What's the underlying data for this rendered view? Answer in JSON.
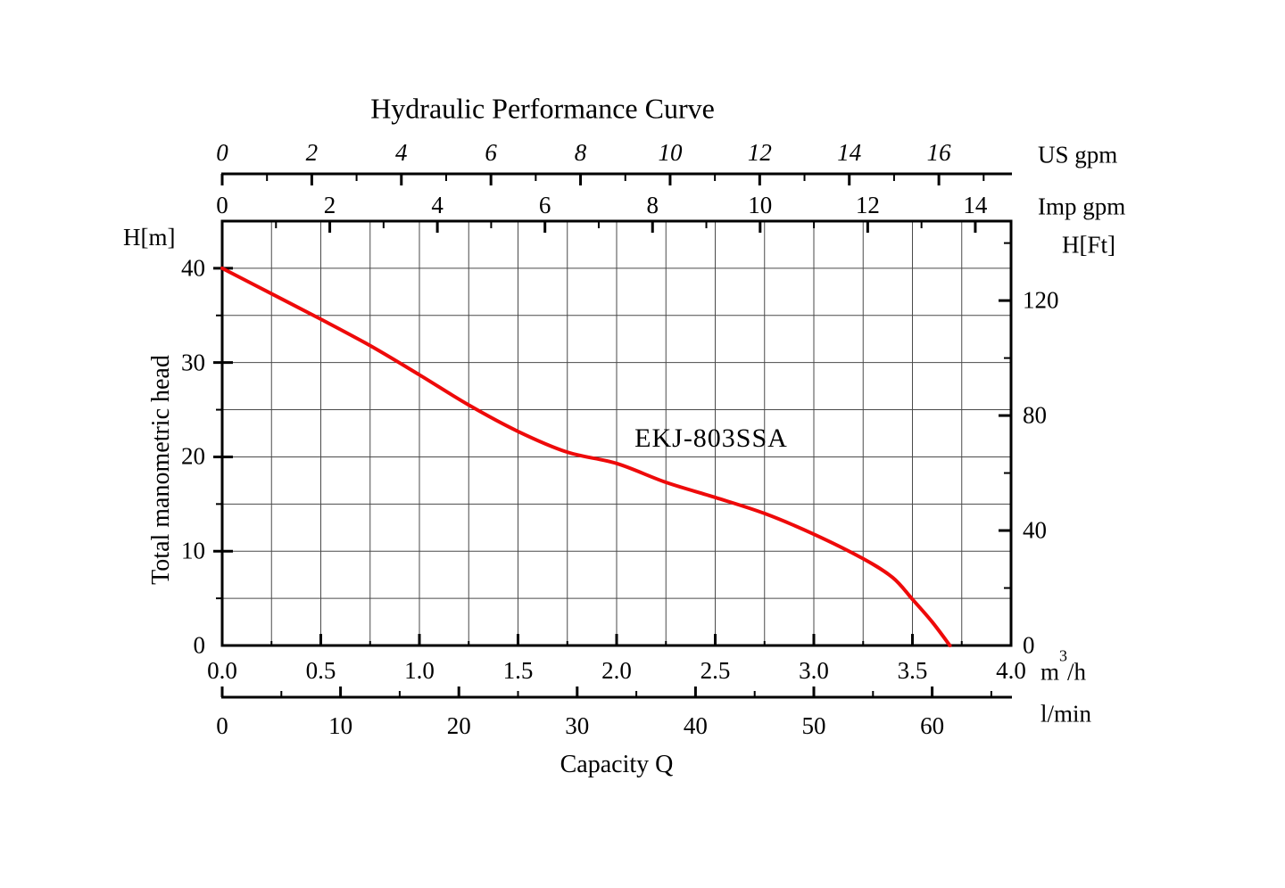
{
  "title": "Hydraulic Performance Curve",
  "labels": {
    "left_axis_unit": "H[m]",
    "left_axis_title": "Total manometric head",
    "right_axis_unit": "H[Ft]",
    "us_gpm_unit": "US gpm",
    "imp_gpm_unit": "Imp gpm",
    "flow_m3h": {
      "pre": "m",
      "sup": "3",
      "post": "/h"
    },
    "flow_lmin": "l/min",
    "x_axis_title": "Capacity Q"
  },
  "chart_data": {
    "type": "line",
    "title": "Hydraulic Performance Curve",
    "xlabel": "Capacity Q",
    "ylabel": "Total manometric head",
    "x_range_m3h": [
      0,
      4.0
    ],
    "y_range_m": [
      0,
      45
    ],
    "grid": "on",
    "x_gridlines": [
      0.25,
      0.5,
      0.75,
      1.0,
      1.25,
      1.5,
      1.75,
      2.0,
      2.25,
      2.5,
      2.75,
      3.0,
      3.25,
      3.5,
      3.75
    ],
    "y_gridlines": [
      5,
      10,
      15,
      20,
      25,
      30,
      35,
      40
    ],
    "colors": {
      "curve": "#ee0a0a",
      "grid": "#4a4a4a",
      "axis": "#000000"
    },
    "series": [
      {
        "name": "EKJ-803SSA",
        "color": "#ee0a0a",
        "units": [
          "m3/h",
          "m"
        ],
        "points": [
          [
            0.0,
            40.0
          ],
          [
            0.25,
            37.3
          ],
          [
            0.5,
            34.6
          ],
          [
            0.75,
            31.8
          ],
          [
            1.0,
            28.7
          ],
          [
            1.25,
            25.5
          ],
          [
            1.5,
            22.7
          ],
          [
            1.75,
            20.5
          ],
          [
            2.0,
            19.3
          ],
          [
            2.25,
            17.3
          ],
          [
            2.5,
            15.7
          ],
          [
            2.75,
            14.0
          ],
          [
            3.0,
            11.8
          ],
          [
            3.25,
            9.2
          ],
          [
            3.4,
            7.2
          ],
          [
            3.5,
            4.9
          ],
          [
            3.6,
            2.5
          ],
          [
            3.69,
            0.0
          ]
        ]
      }
    ],
    "axes": {
      "us_gpm": {
        "unit": "US gpm",
        "factor_m3h": 0.227124,
        "major_mod": 2,
        "ticks": [
          0,
          1,
          2,
          3,
          4,
          5,
          6,
          7,
          8,
          9,
          10,
          11,
          12,
          13,
          14,
          15,
          16,
          17
        ],
        "labels": [
          [
            0,
            "0"
          ],
          [
            2,
            "2"
          ],
          [
            4,
            "4"
          ],
          [
            6,
            "6"
          ],
          [
            8,
            "8"
          ],
          [
            10,
            "10"
          ],
          [
            12,
            "12"
          ],
          [
            14,
            "14"
          ],
          [
            16,
            "16"
          ]
        ]
      },
      "imp_gpm": {
        "unit": "Imp gpm",
        "factor_m3h": 0.272765,
        "major_mod": 2,
        "ticks": [
          0,
          1,
          2,
          3,
          4,
          5,
          6,
          7,
          8,
          9,
          10,
          11,
          12,
          13,
          14
        ],
        "labels": [
          [
            0,
            "0"
          ],
          [
            2,
            "2"
          ],
          [
            4,
            "4"
          ],
          [
            6,
            "6"
          ],
          [
            8,
            "8"
          ],
          [
            10,
            "10"
          ],
          [
            12,
            "12"
          ],
          [
            14,
            "14"
          ]
        ]
      },
      "m3h": {
        "unit": "m3/h",
        "factor_m3h": 1,
        "major_mod": 0.5,
        "ticks": [
          0,
          0.25,
          0.5,
          0.75,
          1.0,
          1.25,
          1.5,
          1.75,
          2.0,
          2.25,
          2.5,
          2.75,
          3.0,
          3.25,
          3.5,
          3.75,
          4.0
        ],
        "labels": [
          [
            0,
            "0.0"
          ],
          [
            0.5,
            "0.5"
          ],
          [
            1.0,
            "1.0"
          ],
          [
            1.5,
            "1.5"
          ],
          [
            2.0,
            "2.0"
          ],
          [
            2.5,
            "2.5"
          ],
          [
            3.0,
            "3.0"
          ],
          [
            3.5,
            "3.5"
          ],
          [
            4.0,
            "4.0"
          ]
        ]
      },
      "lmin": {
        "unit": "l/min",
        "factor_m3h": 0.06,
        "major_mod": 10,
        "ticks": [
          0,
          5,
          10,
          15,
          20,
          25,
          30,
          35,
          40,
          45,
          50,
          55,
          60,
          65
        ],
        "labels": [
          [
            0,
            "0"
          ],
          [
            10,
            "10"
          ],
          [
            20,
            "20"
          ],
          [
            30,
            "30"
          ],
          [
            40,
            "40"
          ],
          [
            50,
            "50"
          ],
          [
            60,
            "60"
          ]
        ]
      },
      "h_m": {
        "unit": "H[m]",
        "major_mod": 10,
        "ticks": [
          5,
          10,
          15,
          20,
          25,
          30,
          35,
          40
        ],
        "labels": [
          [
            0,
            "0"
          ],
          [
            10,
            "10"
          ],
          [
            20,
            "20"
          ],
          [
            30,
            "30"
          ],
          [
            40,
            "40"
          ]
        ]
      },
      "h_ft": {
        "unit": "H[Ft]",
        "factor_m": 0.3048,
        "major_mod": 40,
        "ticks": [
          20,
          40,
          60,
          80,
          100,
          120,
          140
        ],
        "labels": [
          [
            0,
            "0"
          ],
          [
            40,
            "40"
          ],
          [
            80,
            "80"
          ],
          [
            120,
            "120"
          ]
        ]
      }
    }
  }
}
